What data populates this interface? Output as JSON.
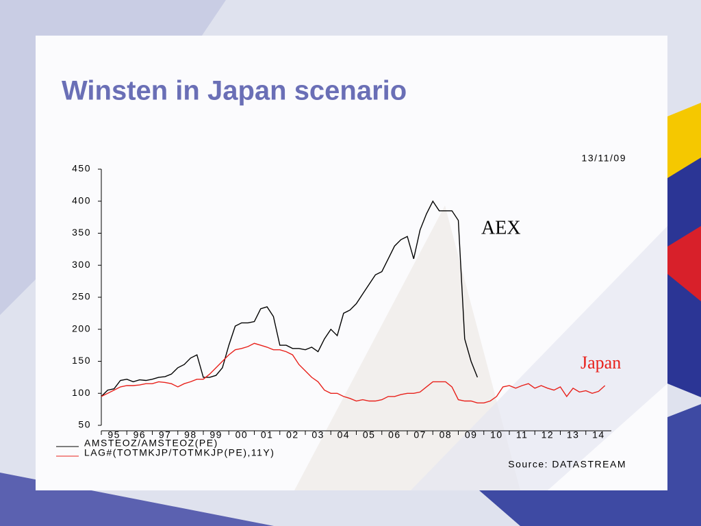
{
  "chart_data": {
    "type": "line",
    "title": "Winsten in Japan scenario",
    "date_label": "13/11/09",
    "source": "Source: DATASTREAM",
    "annotations": [
      "AEX",
      "Japan"
    ],
    "x": [
      1995,
      1995.25,
      1995.5,
      1995.75,
      1996,
      1996.25,
      1996.5,
      1996.75,
      1997,
      1997.25,
      1997.5,
      1997.75,
      1998,
      1998.25,
      1998.5,
      1998.75,
      1999,
      1999.25,
      1999.5,
      1999.75,
      2000,
      2000.25,
      2000.5,
      2000.75,
      2001,
      2001.25,
      2001.5,
      2001.75,
      2002,
      2002.25,
      2002.5,
      2002.75,
      2003,
      2003.25,
      2003.5,
      2003.75,
      2004,
      2004.25,
      2004.5,
      2004.75,
      2005,
      2005.25,
      2005.5,
      2005.75,
      2006,
      2006.25,
      2006.5,
      2006.75,
      2007,
      2007.25,
      2007.5,
      2007.75,
      2008,
      2008.25,
      2008.5,
      2008.75,
      2009,
      2009.25,
      2009.5,
      2009.75,
      2010,
      2010.25,
      2010.5,
      2010.75,
      2011,
      2011.25,
      2011.5,
      2011.75,
      2012,
      2012.25,
      2012.5,
      2012.75,
      2013,
      2013.25,
      2013.5,
      2013.75,
      2014,
      2014.25,
      2014.5,
      2014.75
    ],
    "series": [
      {
        "name": "AMSTEOZ/AMSTEOZ(PE)",
        "color": "#000000",
        "values": [
          95,
          105,
          107,
          120,
          122,
          118,
          121,
          120,
          122,
          125,
          126,
          130,
          140,
          145,
          155,
          160,
          125,
          125,
          128,
          140,
          175,
          205,
          210,
          210,
          212,
          232,
          235,
          220,
          175,
          175,
          170,
          170,
          168,
          172,
          165,
          185,
          200,
          190,
          225,
          230,
          240,
          255,
          270,
          285,
          290,
          310,
          330,
          340,
          345,
          310,
          355,
          380,
          400,
          385,
          385,
          385,
          370,
          185,
          150,
          125,
          null,
          null,
          null,
          null,
          null,
          null,
          null,
          null,
          null,
          null,
          null,
          null,
          null,
          null,
          null,
          null,
          null,
          null,
          null,
          null
        ]
      },
      {
        "name": "LAG#(TOTMKJP/TOTMKJP(PE),11Y)",
        "color": "#e8201a",
        "values": [
          95,
          100,
          105,
          110,
          112,
          112,
          113,
          115,
          115,
          118,
          117,
          115,
          110,
          115,
          118,
          122,
          122,
          130,
          140,
          150,
          160,
          168,
          170,
          173,
          178,
          175,
          172,
          168,
          168,
          165,
          160,
          145,
          135,
          125,
          118,
          105,
          100,
          100,
          95,
          92,
          88,
          90,
          88,
          88,
          90,
          95,
          95,
          98,
          100,
          100,
          102,
          110,
          118,
          118,
          118,
          110,
          90,
          88,
          88,
          85,
          85,
          88,
          95,
          110,
          112,
          108,
          112,
          115,
          108,
          112,
          108,
          105,
          110,
          95,
          108,
          102,
          104,
          100,
          103,
          112
        ]
      }
    ],
    "xlim": [
      1995,
      2015
    ],
    "xticks": [
      {
        "value": 1995,
        "label": "95"
      },
      {
        "value": 1996,
        "label": "96"
      },
      {
        "value": 1997,
        "label": "97"
      },
      {
        "value": 1998,
        "label": "98"
      },
      {
        "value": 1999,
        "label": "99"
      },
      {
        "value": 2000,
        "label": "00"
      },
      {
        "value": 2001,
        "label": "01"
      },
      {
        "value": 2002,
        "label": "02"
      },
      {
        "value": 2003,
        "label": "03"
      },
      {
        "value": 2004,
        "label": "04"
      },
      {
        "value": 2005,
        "label": "05"
      },
      {
        "value": 2006,
        "label": "06"
      },
      {
        "value": 2007,
        "label": "07"
      },
      {
        "value": 2008,
        "label": "08"
      },
      {
        "value": 2009,
        "label": "09"
      },
      {
        "value": 2010,
        "label": "10"
      },
      {
        "value": 2011,
        "label": "11"
      },
      {
        "value": 2012,
        "label": "12"
      },
      {
        "value": 2013,
        "label": "13"
      },
      {
        "value": 2014,
        "label": "14"
      }
    ],
    "ylim": [
      50,
      450
    ],
    "yticks": [
      50,
      100,
      150,
      200,
      250,
      300,
      350,
      400,
      450
    ]
  }
}
